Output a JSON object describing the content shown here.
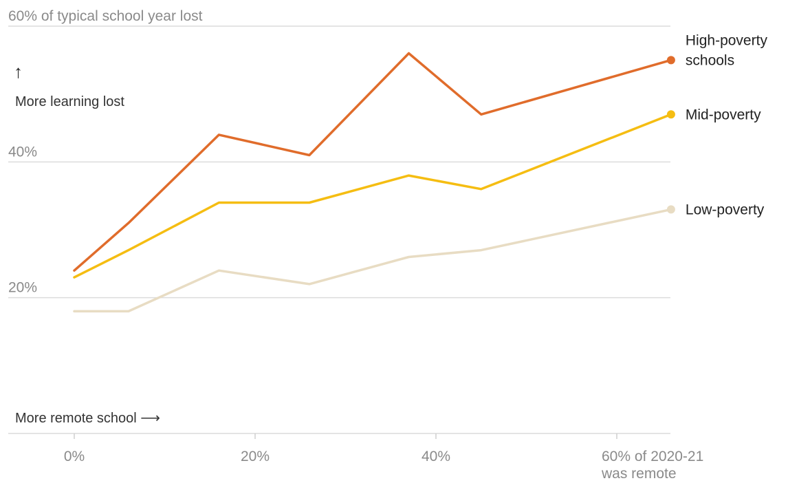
{
  "chart_data": {
    "type": "line",
    "x": [
      0,
      6,
      16,
      26,
      37,
      45,
      66
    ],
    "xlim": [
      -7,
      66
    ],
    "ylim": [
      0,
      60
    ],
    "x_ticks": [
      {
        "value": 0,
        "lines": [
          "0%"
        ]
      },
      {
        "value": 20,
        "lines": [
          "20%"
        ]
      },
      {
        "value": 40,
        "lines": [
          "40%"
        ]
      },
      {
        "value": 60,
        "lines": [
          "60% of 2020-21",
          "was remote"
        ]
      }
    ],
    "y_ticks": [
      {
        "value": 60,
        "label": "60% of typical school year lost"
      },
      {
        "value": 40,
        "label": "40%"
      },
      {
        "value": 20,
        "label": "20%"
      }
    ],
    "y_annotation_arrow": "↑",
    "y_annotation": "More learning lost",
    "x_annotation": "More remote school ⟶",
    "grid": true,
    "legend_placement": "right, at line ends",
    "series": [
      {
        "name": "High-poverty schools",
        "label_lines": [
          "High-poverty",
          "schools"
        ],
        "color": "#e06c2b",
        "values": [
          24,
          31,
          44,
          41,
          56,
          47,
          55
        ]
      },
      {
        "name": "Mid-poverty",
        "label_lines": [
          "Mid-poverty"
        ],
        "color": "#f5bd12",
        "values": [
          23,
          27,
          34,
          34,
          38,
          36,
          47
        ]
      },
      {
        "name": "Low-poverty",
        "label_lines": [
          "Low-poverty"
        ],
        "color": "#e8dcc3",
        "values": [
          18,
          18,
          24,
          22,
          26,
          27,
          33
        ]
      }
    ]
  }
}
